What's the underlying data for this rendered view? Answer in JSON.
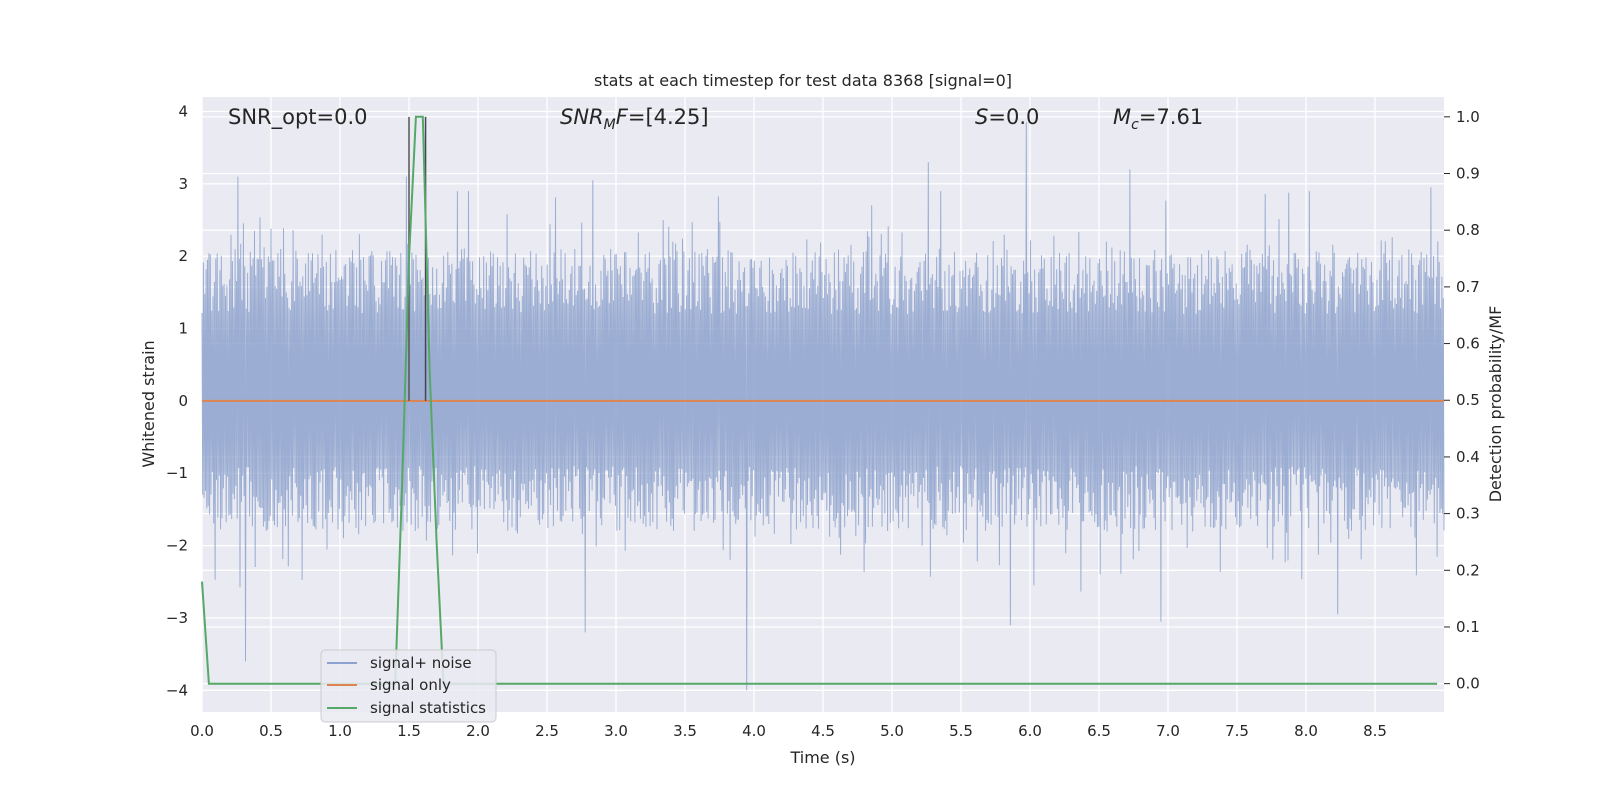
{
  "chart_data": {
    "type": "line",
    "title": "stats at each timestep for test data 8368 [signal=0]",
    "xlabel": "Time (s)",
    "ylabel": "Whitened strain",
    "y2label": "Detection probability/MF",
    "xlim": [
      0,
      9
    ],
    "ylim": [
      -4.3,
      4.2
    ],
    "y2lim": [
      -0.05,
      1.035
    ],
    "xticks": [
      "0.0",
      "0.5",
      "1.0",
      "1.5",
      "2.0",
      "2.5",
      "3.0",
      "3.5",
      "4.0",
      "4.5",
      "5.0",
      "5.5",
      "6.0",
      "6.5",
      "7.0",
      "7.5",
      "8.0",
      "8.5"
    ],
    "yticks": [
      "4",
      "3",
      "2",
      "1",
      "0",
      "−1",
      "−2",
      "−3",
      "−4"
    ],
    "y2ticks": [
      "1.0",
      "0.9",
      "0.8",
      "0.7",
      "0.6",
      "0.5",
      "0.4",
      "0.3",
      "0.2",
      "0.1",
      "0.0"
    ],
    "grid": true,
    "legend": "lower-left",
    "annotations": {
      "snr_opt": "SNR_opt=0.0",
      "snr_mf": "[4.25]",
      "s": "0.0",
      "mc": "7.61"
    },
    "series": [
      {
        "name": "signal+ noise",
        "color": "#8da2cc",
        "description_values": {
          "typical_range": [
            -1.9,
            2.1
          ],
          "max": 3.85,
          "min": -4.0
        },
        "peaks": [
          {
            "x": 0.26,
            "y": 3.1
          },
          {
            "x": 0.32,
            "y": -3.6
          },
          {
            "x": 1.48,
            "y": 3.1
          },
          {
            "x": 2.78,
            "y": -3.2
          },
          {
            "x": 2.83,
            "y": 3.05
          },
          {
            "x": 3.95,
            "y": -4.0
          },
          {
            "x": 5.26,
            "y": 3.3
          },
          {
            "x": 5.97,
            "y": 3.85
          },
          {
            "x": 5.86,
            "y": -3.1
          },
          {
            "x": 6.72,
            "y": 3.2
          },
          {
            "x": 6.95,
            "y": -3.05
          },
          {
            "x": 8.23,
            "y": -2.95
          },
          {
            "x": 8.9,
            "y": 2.95
          }
        ]
      },
      {
        "name": "signal only",
        "color": "#dd8452",
        "x": [
          0,
          9
        ],
        "y": [
          0,
          0
        ]
      },
      {
        "name": "signal statistics",
        "color": "#55a868",
        "axis": "right",
        "x": [
          0.0,
          0.05,
          0.1,
          1.3,
          1.35,
          1.4,
          1.45,
          1.5,
          1.55,
          1.6,
          1.65,
          1.7,
          1.75,
          1.8,
          8.95
        ],
        "y": [
          0.18,
          0.0,
          0.0,
          0.0,
          0.0,
          0.0,
          0.35,
          0.75,
          1.0,
          1.0,
          0.55,
          0.25,
          0.0,
          0.0,
          0.0
        ]
      }
    ],
    "vlines": [
      {
        "x": 1.5,
        "y2_top": 1.0,
        "color": "#555555"
      },
      {
        "x": 1.62,
        "y2_top": 1.0,
        "color": "#444455"
      }
    ]
  }
}
